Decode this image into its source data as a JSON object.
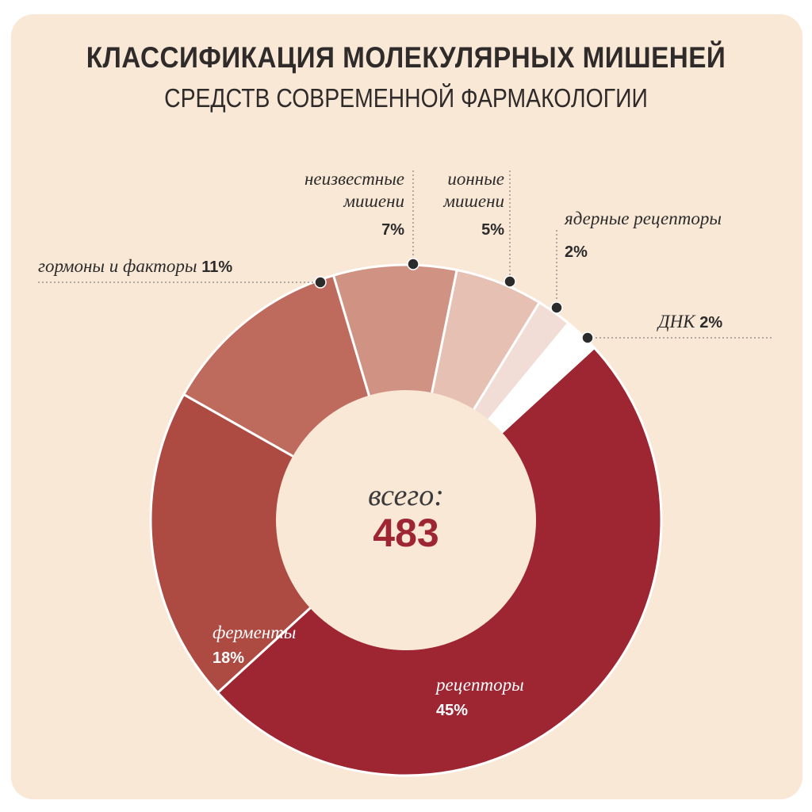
{
  "chart_data": {
    "type": "pie",
    "title": "КЛАССИФИКАЦИЯ МОЛЕКУЛЯРНЫХ МИШЕНЕЙ",
    "subtitle": "СРЕДСТВ СОВРЕМЕННОЙ ФАРМАКОЛОГИИ",
    "total_label": "всего:",
    "total_value": "483",
    "slices": [
      {
        "name": "рецепторы",
        "value": 45,
        "label": "45%",
        "color": "#9e2532"
      },
      {
        "name": "ферменты",
        "value": 18,
        "label": "18%",
        "color": "#ad4a42"
      },
      {
        "name": "гормоны и факторы",
        "value": 11,
        "label": "11%",
        "color": "#be6b5d"
      },
      {
        "name": "неизвестные мишени",
        "name_lines": [
          "неизвестные",
          "мишени"
        ],
        "value": 7,
        "label": "7%",
        "color": "#d09383"
      },
      {
        "name": "ионные мишени",
        "name_lines": [
          "ионные",
          "мишени"
        ],
        "value": 5,
        "label": "5%",
        "color": "#e6c0b3"
      },
      {
        "name": "ядерные рецепторы",
        "value": 2,
        "label": "2%",
        "color": "#f1ddd5"
      },
      {
        "name": "ДНК",
        "value": 2,
        "label": "2%",
        "color": "#ffffff"
      }
    ]
  }
}
